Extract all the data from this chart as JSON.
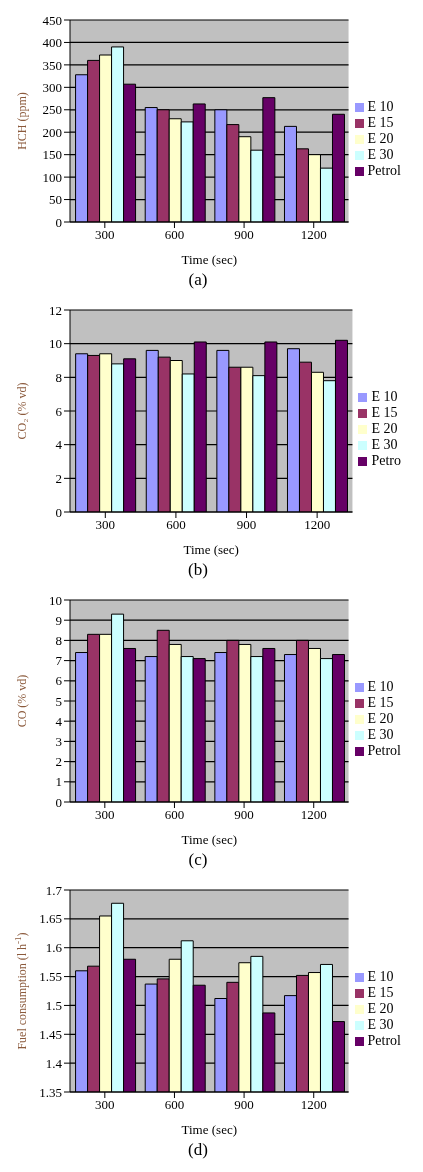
{
  "chart_data": [
    {
      "type": "bar",
      "xlabel": "Time (sec)",
      "ylabel": "HCH (ppm)",
      "annotations": [
        "(a)"
      ],
      "categories": [
        "300",
        "600",
        "900",
        "1200"
      ],
      "ylim": [
        0,
        450
      ],
      "yticks": [
        0,
        50,
        100,
        150,
        200,
        250,
        300,
        350,
        400,
        450
      ],
      "grid": "y",
      "legend": "right",
      "series": [
        {
          "name": "E 10",
          "color": "#9999ff",
          "values": [
            328,
            255,
            250,
            213
          ]
        },
        {
          "name": "E 15",
          "color": "#993366",
          "values": [
            360,
            250,
            217,
            163
          ]
        },
        {
          "name": "E 20",
          "color": "#ffffcc",
          "values": [
            372,
            230,
            190,
            150
          ]
        },
        {
          "name": "E 30",
          "color": "#ccffff",
          "values": [
            390,
            223,
            160,
            120
          ]
        },
        {
          "name": "Petrol",
          "color": "#660066",
          "values": [
            307,
            263,
            277,
            240
          ]
        }
      ]
    },
    {
      "type": "bar",
      "xlabel": "Time (sec)",
      "ylabel": "CO₂ (% vd)",
      "annotations": [
        "(b)"
      ],
      "categories": [
        "300",
        "600",
        "900",
        "1200"
      ],
      "ylim": [
        0,
        12
      ],
      "yticks": [
        0,
        2,
        4,
        6,
        8,
        10,
        12
      ],
      "grid": "y",
      "legend": "right",
      "series": [
        {
          "name": "E 10",
          "color": "#9999ff",
          "values": [
            9.4,
            9.6,
            9.6,
            9.7
          ]
        },
        {
          "name": "E 15",
          "color": "#993366",
          "values": [
            9.3,
            9.2,
            8.6,
            8.9
          ]
        },
        {
          "name": "E 20",
          "color": "#ffffcc",
          "values": [
            9.4,
            9.0,
            8.6,
            8.3
          ]
        },
        {
          "name": "E 30",
          "color": "#ccffff",
          "values": [
            8.8,
            8.2,
            8.1,
            7.8
          ]
        },
        {
          "name": "Petro",
          "color": "#660066",
          "values": [
            9.1,
            10.1,
            10.1,
            10.2
          ]
        }
      ]
    },
    {
      "type": "bar",
      "xlabel": "Time (sec)",
      "ylabel": "CO (% vd)",
      "annotations": [
        "(c)"
      ],
      "categories": [
        "300",
        "600",
        "900",
        "1200"
      ],
      "ylim": [
        0,
        10
      ],
      "yticks": [
        0,
        1,
        2,
        3,
        4,
        5,
        6,
        7,
        8,
        9,
        10
      ],
      "grid": "y",
      "legend": "right",
      "series": [
        {
          "name": "E 10",
          "color": "#9999ff",
          "values": [
            7.4,
            7.2,
            7.4,
            7.3
          ]
        },
        {
          "name": "E 15",
          "color": "#993366",
          "values": [
            8.3,
            8.5,
            8.0,
            8.0
          ]
        },
        {
          "name": "E 20",
          "color": "#ffffcc",
          "values": [
            8.3,
            7.8,
            7.8,
            7.6
          ]
        },
        {
          "name": "E 30",
          "color": "#ccffff",
          "values": [
            9.3,
            7.2,
            7.2,
            7.1
          ]
        },
        {
          "name": "Petrol",
          "color": "#660066",
          "values": [
            7.6,
            7.1,
            7.6,
            7.3
          ]
        }
      ]
    },
    {
      "type": "bar",
      "xlabel": "Time (sec)",
      "ylabel": "Fuel consumption (l h$^{-1}$)",
      "annotations": [
        "(d)"
      ],
      "categories": [
        "300",
        "600",
        "900",
        "1200"
      ],
      "ylim": [
        1.35,
        1.7
      ],
      "yticks": [
        1.35,
        1.4,
        1.45,
        1.5,
        1.55,
        1.6,
        1.65,
        1.7
      ],
      "grid": "y",
      "legend": "right",
      "series": [
        {
          "name": "E 10",
          "color": "#9999ff",
          "values": [
            1.56,
            1.537,
            1.512,
            1.517
          ]
        },
        {
          "name": "E 15",
          "color": "#993366",
          "values": [
            1.568,
            1.546,
            1.54,
            1.552
          ]
        },
        {
          "name": "E 20",
          "color": "#ffffcc",
          "values": [
            1.655,
            1.58,
            1.574,
            1.557
          ]
        },
        {
          "name": "E 30",
          "color": "#ccffff",
          "values": [
            1.677,
            1.612,
            1.585,
            1.571
          ]
        },
        {
          "name": "Petrol",
          "color": "#660066",
          "values": [
            1.58,
            1.535,
            1.487,
            1.472
          ]
        }
      ]
    }
  ]
}
